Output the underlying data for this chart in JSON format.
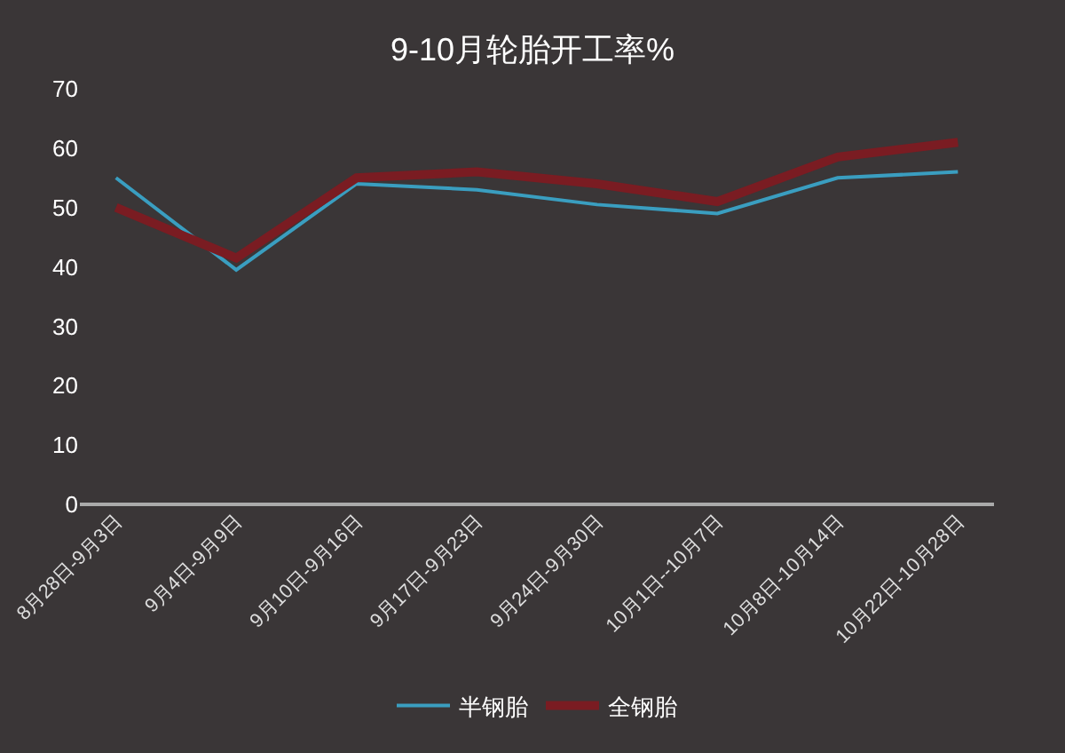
{
  "chart_data": {
    "type": "line",
    "title": "9-10月轮胎开工率%",
    "categories": [
      "8月28日-9月3日",
      "9月4日-9月9日",
      "9月10日-9月16日",
      "9月17日-9月23日",
      "9月24日-9月30日",
      "10月1日--10月7日",
      "10月8日-10月14日",
      "10月22日-10月28日"
    ],
    "series": [
      {
        "name": "半钢胎",
        "color": "#3a9ec0",
        "values": [
          55,
          39.5,
          54,
          53,
          50.5,
          49,
          55,
          56
        ]
      },
      {
        "name": "全钢胎",
        "color": "#7a1c22",
        "values": [
          50,
          41.5,
          55,
          56,
          54,
          51,
          58.5,
          61
        ]
      }
    ],
    "ylim": [
      0,
      70
    ],
    "yticks": [
      0,
      10,
      20,
      30,
      40,
      50,
      60,
      70
    ],
    "grid": false,
    "legend": "bottom",
    "marker": "none",
    "line_style": "solid"
  }
}
